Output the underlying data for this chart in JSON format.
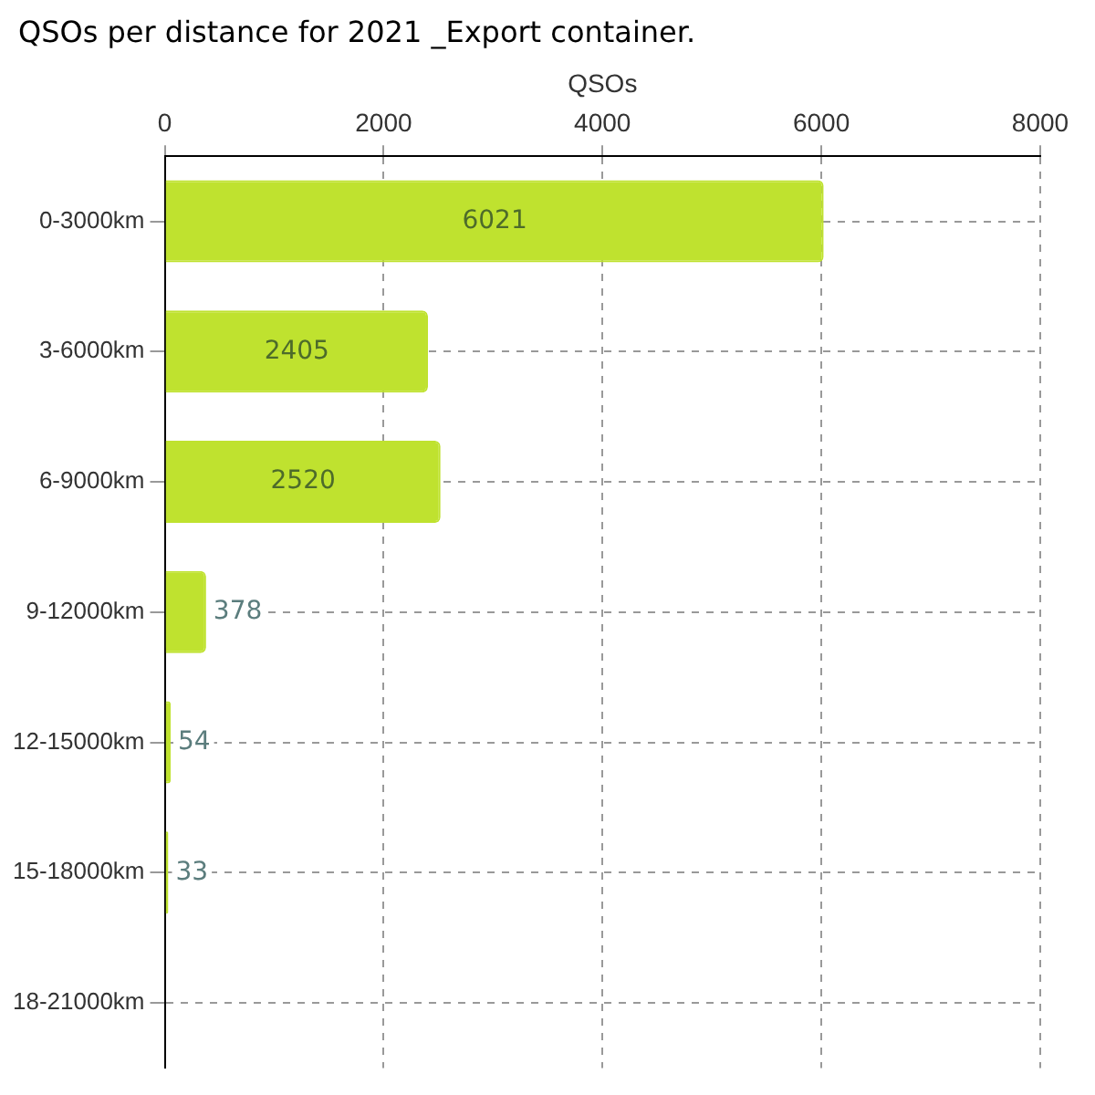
{
  "chart_data": {
    "type": "bar",
    "orientation": "horizontal",
    "title": "QSOs per distance for 2021 _Export container.",
    "xlabel": "QSOs",
    "categories": [
      "0-3000km",
      "3-6000km",
      "6-9000km",
      "9-12000km",
      "12-15000km",
      "15-18000km",
      "18-21000km"
    ],
    "values": [
      6021,
      2405,
      2520,
      378,
      54,
      33,
      0
    ],
    "value_labels": [
      "6021",
      "2405",
      "2520",
      "378",
      "54",
      "33",
      null
    ],
    "color": "#bfe22f",
    "xlim": [
      0,
      8000
    ],
    "xticks": [
      0,
      2000,
      4000,
      6000,
      8000
    ],
    "grid": true,
    "legend": false
  }
}
